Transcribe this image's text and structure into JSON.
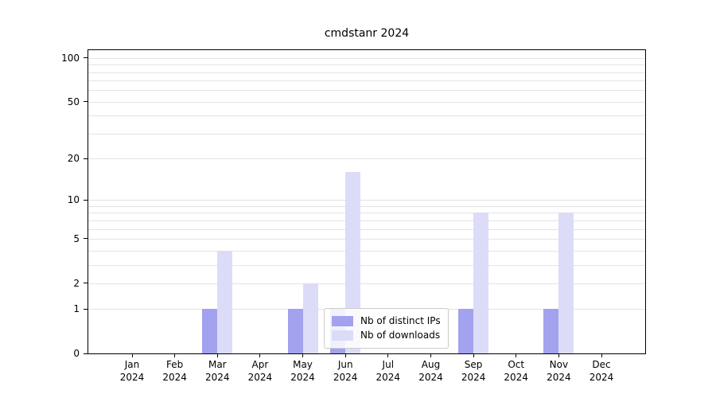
{
  "title": "cmdstanr 2024",
  "colors": {
    "ips_bar": "#a2a2ee",
    "downloads_bar": "#dcdcf8",
    "grid": "#e3e3e3",
    "axis": "#000000",
    "legend_border": "#cccccc"
  },
  "y_axis": {
    "tick_values": [
      100,
      50,
      20,
      10,
      5,
      2,
      1,
      0
    ],
    "tick_labels": [
      "100",
      "50",
      "20",
      "10",
      "5",
      "2",
      "1",
      "0"
    ],
    "gridline_values": [
      1,
      2,
      3,
      4,
      5,
      6,
      7,
      8,
      9,
      10,
      20,
      30,
      40,
      50,
      60,
      70,
      80,
      90,
      100
    ],
    "scale": "log1p",
    "scale_max": 113
  },
  "x_axis": {
    "months": [
      "Jan",
      "Feb",
      "Mar",
      "Apr",
      "May",
      "Jun",
      "Jul",
      "Aug",
      "Sep",
      "Oct",
      "Nov",
      "Dec"
    ],
    "year": "2024"
  },
  "legend": {
    "items": [
      {
        "label": "Nb of distinct IPs",
        "color_key": "ips_bar"
      },
      {
        "label": "Nb of downloads",
        "color_key": "downloads_bar"
      }
    ]
  },
  "chart_data": {
    "type": "bar",
    "title": "cmdstanr 2024",
    "categories": [
      "Jan 2024",
      "Feb 2024",
      "Mar 2024",
      "Apr 2024",
      "May 2024",
      "Jun 2024",
      "Jul 2024",
      "Aug 2024",
      "Sep 2024",
      "Oct 2024",
      "Nov 2024",
      "Dec 2024"
    ],
    "series": [
      {
        "name": "Nb of distinct IPs",
        "values": [
          0,
          0,
          1,
          0,
          1,
          1,
          0,
          0,
          1,
          0,
          1,
          0
        ]
      },
      {
        "name": "Nb of downloads",
        "values": [
          0,
          0,
          4,
          0,
          2,
          16,
          0,
          0,
          8,
          0,
          8,
          0
        ]
      }
    ],
    "xlabel": "",
    "ylabel": "",
    "y_scale": "log1p",
    "y_ticks": [
      0,
      1,
      2,
      5,
      10,
      20,
      50,
      100
    ],
    "ylim": [
      0,
      113
    ],
    "grid": "horizontal",
    "legend_position": "lower center"
  }
}
